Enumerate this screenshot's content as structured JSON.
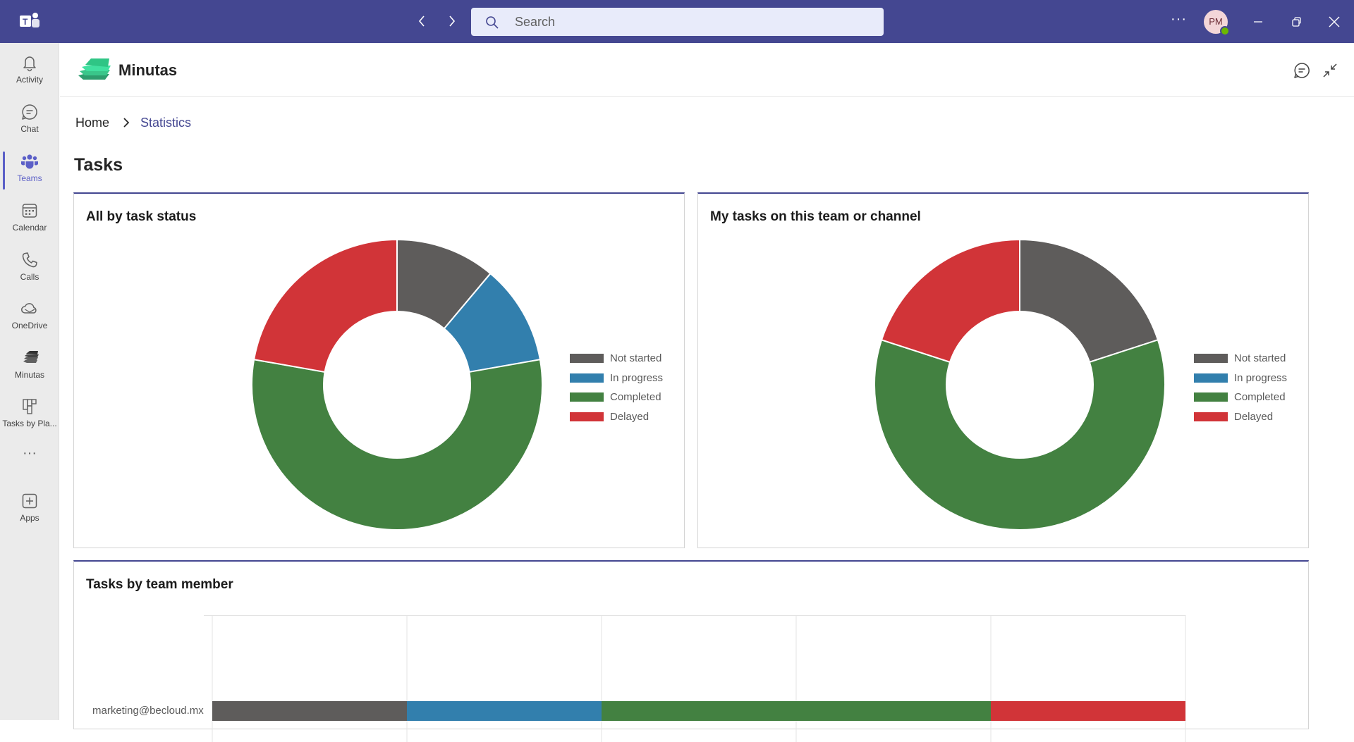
{
  "titlebar": {
    "search_placeholder": "Search",
    "more_label": "···",
    "user_initials": "PM"
  },
  "rail": {
    "items": [
      {
        "label": "Activity",
        "icon": "bell-icon"
      },
      {
        "label": "Chat",
        "icon": "chat-icon"
      },
      {
        "label": "Teams",
        "icon": "teams-icon"
      },
      {
        "label": "Calendar",
        "icon": "calendar-icon"
      },
      {
        "label": "Calls",
        "icon": "phone-icon"
      },
      {
        "label": "OneDrive",
        "icon": "cloud-icon"
      },
      {
        "label": "Minutas",
        "icon": "minutas-icon"
      },
      {
        "label": "Tasks by Pla...",
        "icon": "planner-icon"
      },
      {
        "label": "···",
        "icon": "more-icon"
      },
      {
        "label": "Apps",
        "icon": "add-apps-icon"
      }
    ],
    "active": "Teams"
  },
  "app": {
    "name": "Minutas"
  },
  "breadcrumb": {
    "home": "Home",
    "current": "Statistics"
  },
  "page_title": "Tasks",
  "colors": {
    "brand": "#444791",
    "not_started": "#5e5c5b",
    "in_progress": "#327fad",
    "completed": "#438141",
    "delayed": "#d13438"
  },
  "chart_data": [
    {
      "type": "pie",
      "title": "All by task status",
      "donut": true,
      "categories": [
        "Not started",
        "In progress",
        "Completed",
        "Delayed"
      ],
      "values": [
        1,
        1,
        5,
        2
      ],
      "legend": "right"
    },
    {
      "type": "pie",
      "title": "My tasks on this team or channel",
      "donut": true,
      "categories": [
        "Not started",
        "In progress",
        "Completed",
        "Delayed"
      ],
      "values": [
        1,
        0,
        3,
        1
      ],
      "legend": "right"
    },
    {
      "type": "bar",
      "orientation": "horizontal",
      "stacked": true,
      "title": "Tasks by team member",
      "categories": [
        "marketing@becloud.mx"
      ],
      "series": [
        {
          "name": "Not started",
          "values": [
            1
          ]
        },
        {
          "name": "In progress",
          "values": [
            1
          ]
        },
        {
          "name": "Completed",
          "values": [
            2
          ]
        },
        {
          "name": "Delayed",
          "values": [
            1
          ]
        }
      ],
      "xlim": [
        0,
        5
      ],
      "grid": true
    }
  ]
}
